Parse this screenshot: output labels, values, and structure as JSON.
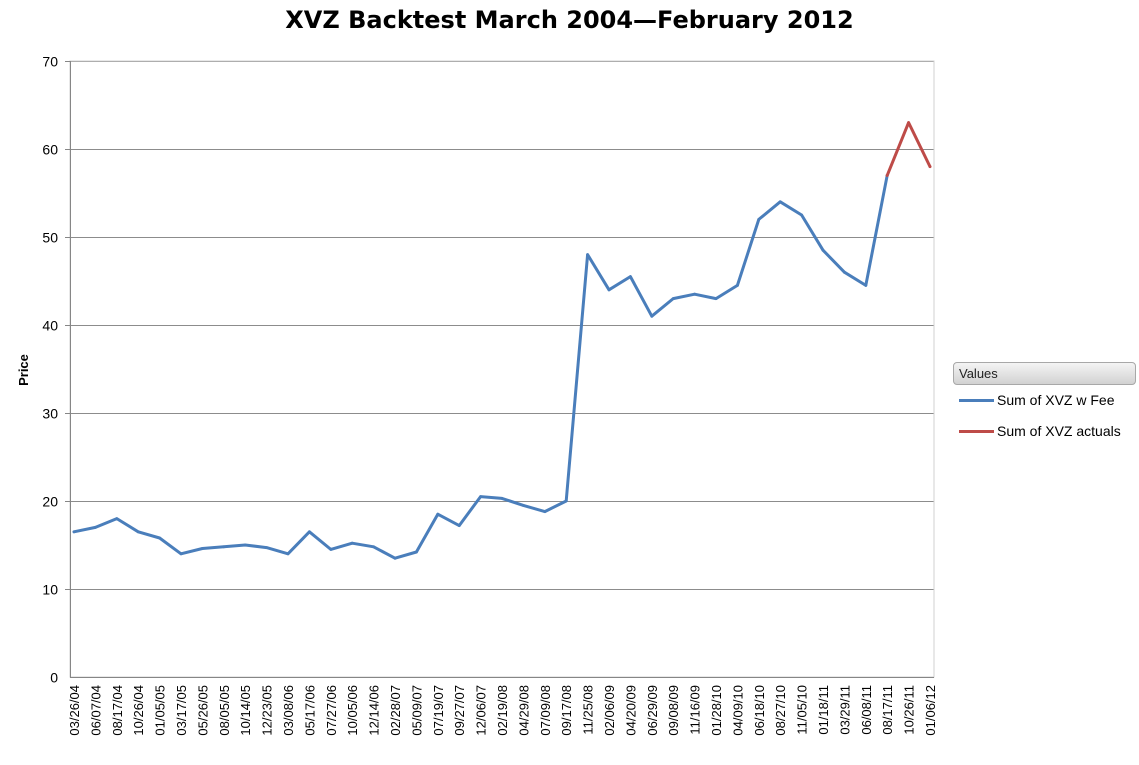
{
  "chart_data": {
    "type": "line",
    "title": "XVZ Backtest March 2004—February 2012",
    "xlabel": "",
    "ylabel": "Price",
    "ylim": [
      0,
      70
    ],
    "yticks": [
      0,
      10,
      20,
      30,
      40,
      50,
      60,
      70
    ],
    "grid": true,
    "legend_title": "Values",
    "legend_position": "right",
    "x_tick_labels": [
      "03/26/04",
      "06/07/04",
      "08/17/04",
      "10/26/04",
      "01/05/05",
      "03/17/05",
      "05/26/05",
      "08/05/05",
      "10/14/05",
      "12/23/05",
      "03/08/06",
      "05/17/06",
      "07/27/06",
      "10/05/06",
      "12/14/06",
      "02/28/07",
      "05/09/07",
      "07/19/07",
      "09/27/07",
      "12/06/07",
      "02/19/08",
      "04/29/08",
      "07/09/08",
      "09/17/08",
      "11/25/08",
      "02/06/09",
      "04/20/09",
      "06/29/09",
      "09/08/09",
      "11/16/09",
      "01/28/10",
      "04/09/10",
      "06/18/10",
      "08/27/10",
      "11/05/10",
      "01/18/11",
      "03/29/11",
      "06/08/11",
      "08/17/11",
      "10/26/11",
      "01/06/12"
    ],
    "series": [
      {
        "name": "Sum of XVZ w Fee",
        "color": "#4a7ebb",
        "x": [
          "03/26/04",
          "06/07/04",
          "08/17/04",
          "10/26/04",
          "01/05/05",
          "03/17/05",
          "05/26/05",
          "08/05/05",
          "10/14/05",
          "12/23/05",
          "03/08/06",
          "05/17/06",
          "07/27/06",
          "10/05/06",
          "12/14/06",
          "02/28/07",
          "05/09/07",
          "07/19/07",
          "09/27/07",
          "12/06/07",
          "02/19/08",
          "04/29/08",
          "07/09/08",
          "09/17/08",
          "11/25/08",
          "02/06/09",
          "04/20/09",
          "06/29/09",
          "09/08/09",
          "11/16/09",
          "01/28/10",
          "04/09/10",
          "06/18/10",
          "08/27/10",
          "11/05/10",
          "01/18/11",
          "03/29/11",
          "06/08/11",
          "08/17/11"
        ],
        "values": [
          16.5,
          17.0,
          18.0,
          16.5,
          15.8,
          14.0,
          14.6,
          14.8,
          15.0,
          14.7,
          14.0,
          16.5,
          14.5,
          15.2,
          14.8,
          13.5,
          14.2,
          18.5,
          17.2,
          20.5,
          20.3,
          19.5,
          18.8,
          20.0,
          48.0,
          44.0,
          45.5,
          41.0,
          43.0,
          43.5,
          43.0,
          44.5,
          52.0,
          54.0,
          52.5,
          48.5,
          46.0,
          44.5,
          57.0
        ]
      },
      {
        "name": "Sum of XVZ actuals",
        "color": "#be4b48",
        "x": [
          "08/17/11",
          "10/26/11",
          "01/06/12"
        ],
        "values": [
          57.0,
          63.0,
          58.0
        ]
      }
    ]
  }
}
